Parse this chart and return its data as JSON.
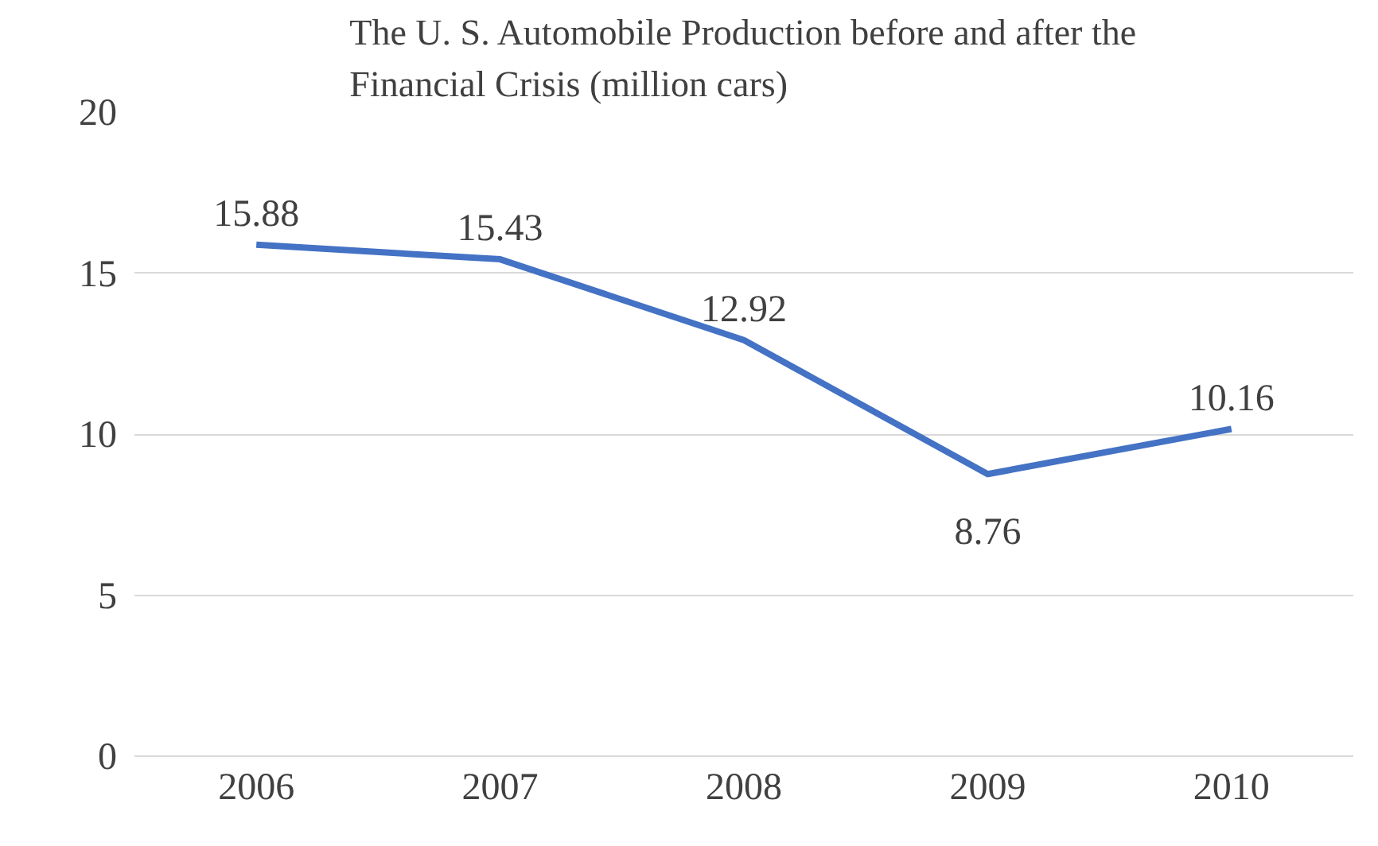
{
  "chart_data": {
    "type": "line",
    "title": "The U. S. Automobile Production before and after the Financial Crisis (million cars)",
    "categories": [
      "2006",
      "2007",
      "2008",
      "2009",
      "2010"
    ],
    "series": [
      {
        "color": "#4472c4",
        "values": [
          15.88,
          15.43,
          12.92,
          8.76,
          10.16
        ]
      }
    ],
    "ylim": [
      0,
      20
    ],
    "yticks": [
      0,
      5,
      10,
      15,
      20
    ],
    "grid": "y",
    "marker": "none",
    "line_style": "solid",
    "data_labels": true
  }
}
